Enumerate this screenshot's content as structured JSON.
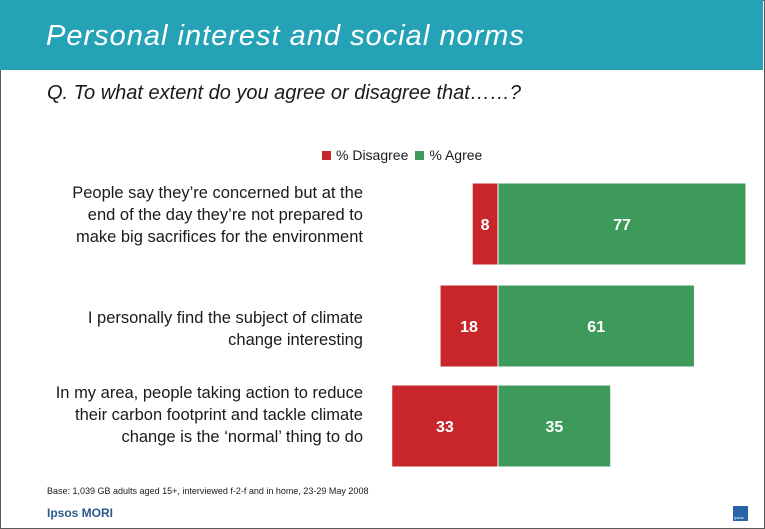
{
  "title": "Personal interest and social norms",
  "question": "Q. To what extent do you agree or disagree that……?",
  "legend": [
    {
      "label": "% Disagree",
      "color": "#c8262b"
    },
    {
      "label": "% Agree",
      "color": "#3e9a5a"
    }
  ],
  "chart_data": {
    "type": "bar",
    "orientation": "horizontal-diverging",
    "categories": [
      "People say they’re concerned but at the end of the day they’re not prepared to make big sacrifices for the environment",
      "I personally find the subject of climate change interesting",
      "In my area, people taking action to reduce their carbon footprint and tackle climate change is the ‘normal’ thing to do"
    ],
    "series": [
      {
        "name": "% Disagree",
        "values": [
          8,
          18,
          33
        ],
        "color": "#c8262b"
      },
      {
        "name": "% Agree",
        "values": [
          77,
          61,
          35
        ],
        "color": "#3e9a5a"
      }
    ],
    "legend_position": "top"
  },
  "footnote": "Base: 1,039 GB adults aged 15+, interviewed f-2-f and in home, 23-29 May 2008",
  "brand": "Ipsos MORI",
  "logo_text": "Ipsos"
}
